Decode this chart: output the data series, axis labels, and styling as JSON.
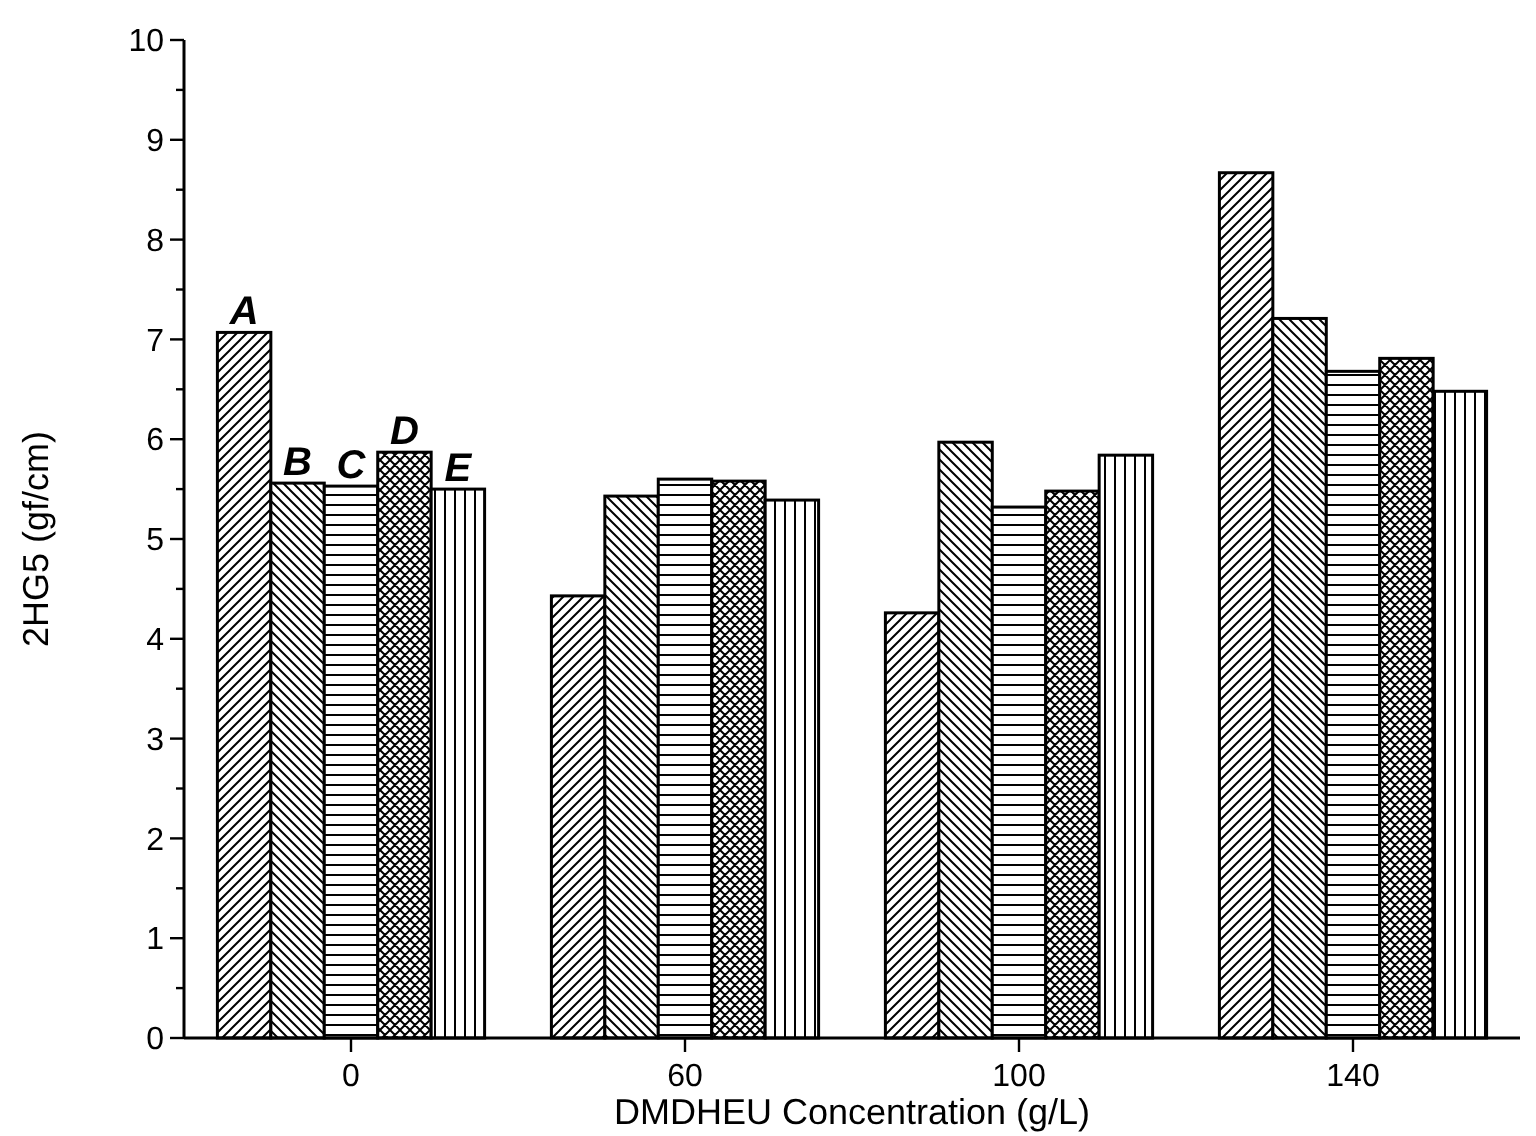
{
  "chart_data": {
    "type": "bar",
    "xlabel": "DMDHEU Concentration (g/L)",
    "ylabel": "2HG5 (gf/cm)",
    "categories": [
      "0",
      "60",
      "100",
      "140"
    ],
    "series": [
      {
        "name": "A",
        "color": "#000000",
        "values": [
          7.07,
          4.43,
          4.26,
          8.67
        ]
      },
      {
        "name": "B",
        "color": "#000000",
        "values": [
          5.56,
          5.43,
          5.97,
          7.21
        ]
      },
      {
        "name": "C",
        "color": "#000000",
        "values": [
          5.53,
          5.6,
          5.32,
          6.68
        ]
      },
      {
        "name": "D",
        "color": "#000000",
        "values": [
          5.87,
          5.58,
          5.48,
          6.81
        ]
      },
      {
        "name": "E",
        "color": "#000000",
        "values": [
          5.5,
          5.39,
          5.84,
          6.48
        ]
      }
    ],
    "ylim": [
      0,
      10
    ],
    "yticks": [
      0,
      {
        "value": 0.5,
        "label": null
      },
      1,
      {
        "value": 1.5,
        "label": null
      },
      2,
      {
        "value": 2.5,
        "label": null
      },
      3,
      {
        "value": 3.5,
        "label": null
      },
      4,
      {
        "value": 4.5,
        "label": null
      },
      5,
      {
        "value": 5.5,
        "label": null
      },
      6,
      {
        "value": 6.5,
        "label": null
      },
      7,
      {
        "value": 7.5,
        "label": null
      },
      8,
      {
        "value": 8.5,
        "label": null
      },
      9,
      {
        "value": 9.5,
        "label": null
      },
      10
    ],
    "grid": false
  }
}
